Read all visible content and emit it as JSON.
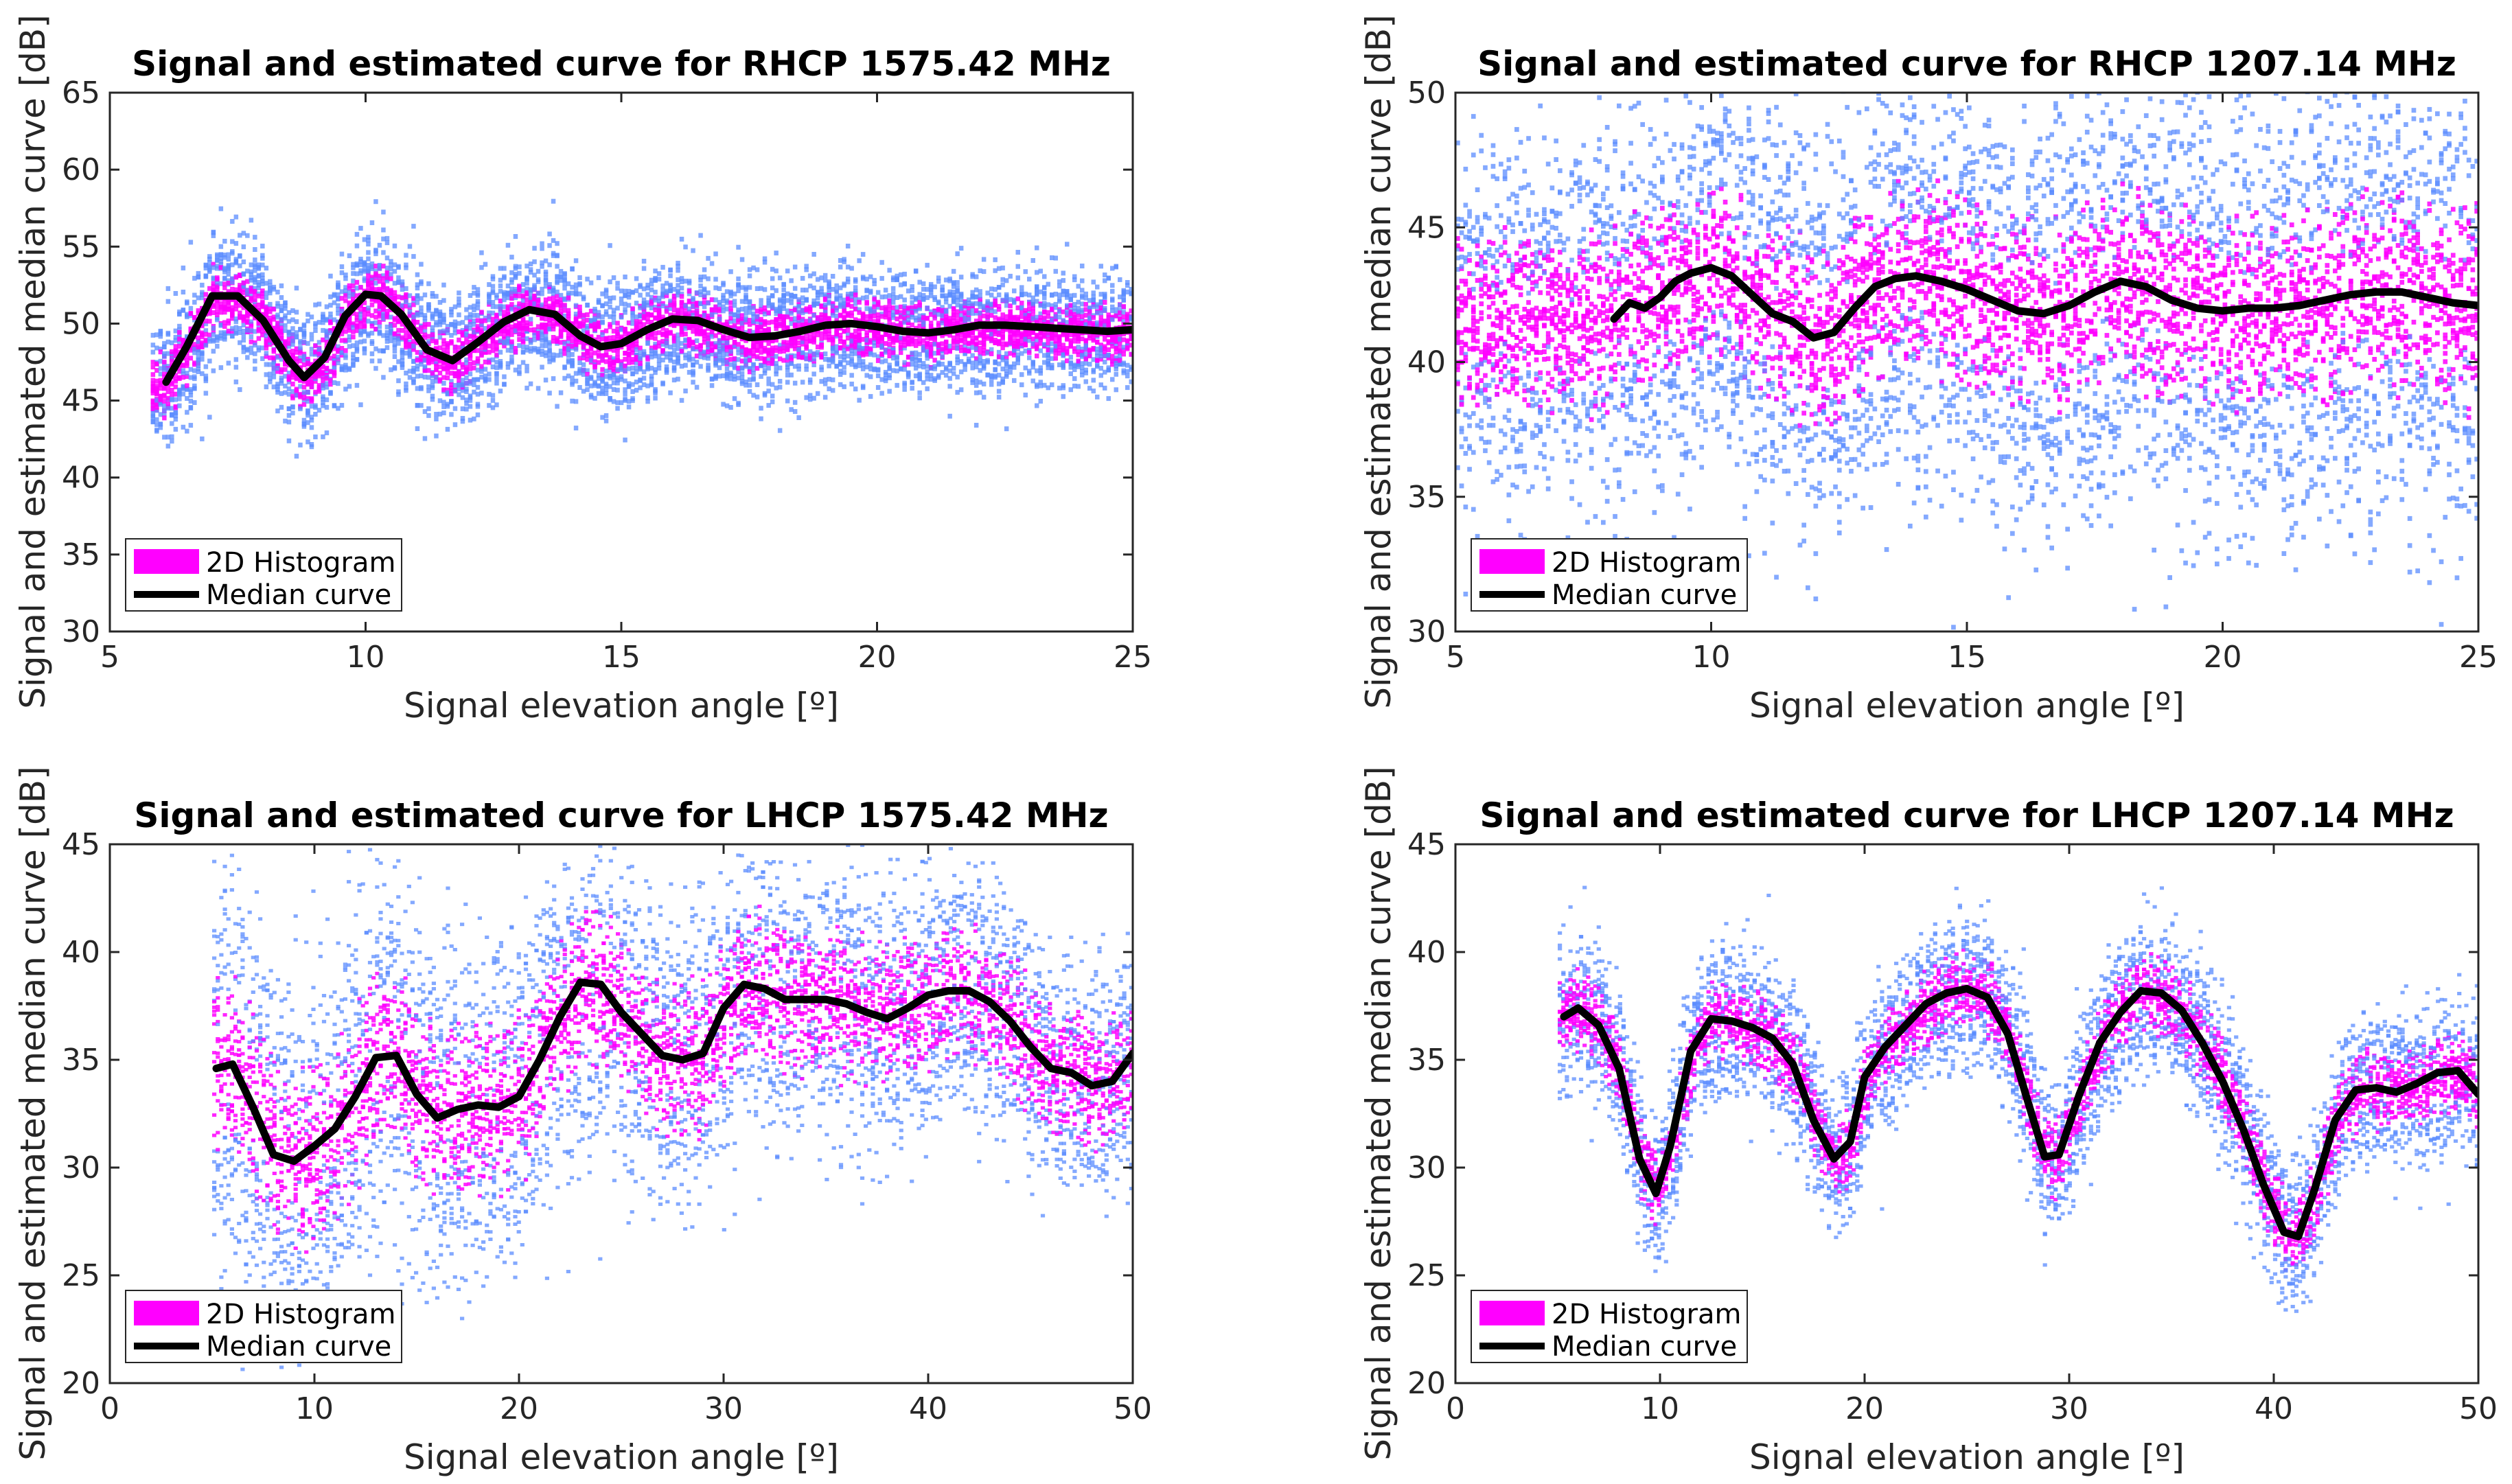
{
  "figure": {
    "colors": {
      "histogram_high": "#ff00ff",
      "histogram_low": "#5b8cff",
      "median": "#000000",
      "axis": "#262626"
    },
    "legend_position": "bottom-left"
  },
  "chart_data": [
    {
      "type": "scatter",
      "title": "Signal and estimated curve for RHCP 1575.42 MHz",
      "xlabel": "Signal elevation angle [º]",
      "ylabel": "Signal and estimated median curve [dB]",
      "xlim": [
        5,
        25
      ],
      "ylim": [
        30,
        65
      ],
      "xticks": [
        5,
        10,
        15,
        20,
        25
      ],
      "yticks": [
        30,
        35,
        40,
        45,
        50,
        55,
        60,
        65
      ],
      "legend": [
        "2D Histogram",
        "Median curve"
      ],
      "median_curve": {
        "x": [
          6.1,
          6.5,
          7.0,
          7.5,
          8.0,
          8.5,
          8.8,
          9.2,
          9.6,
          10.0,
          10.3,
          10.7,
          11.2,
          11.7,
          12.2,
          12.7,
          13.2,
          13.7,
          14.2,
          14.6,
          15.0,
          15.5,
          16.0,
          16.5,
          17.0,
          17.5,
          18.0,
          18.5,
          19.0,
          19.5,
          20.0,
          20.5,
          21.0,
          21.5,
          22.0,
          22.5,
          23.0,
          23.5,
          24.0,
          24.5,
          25.0
        ],
        "y": [
          46.2,
          48.5,
          51.8,
          51.8,
          50.2,
          47.6,
          46.5,
          47.8,
          50.5,
          51.9,
          51.8,
          50.6,
          48.3,
          47.6,
          48.8,
          50.1,
          50.9,
          50.6,
          49.2,
          48.5,
          48.7,
          49.6,
          50.3,
          50.2,
          49.6,
          49.1,
          49.2,
          49.5,
          49.9,
          50.0,
          49.8,
          49.5,
          49.4,
          49.6,
          49.9,
          49.9,
          49.8,
          49.7,
          49.6,
          49.5,
          49.6
        ]
      },
      "histogram": {
        "x_start": 5.8,
        "x_end": 25,
        "spread": [
          4.0,
          3.2
        ],
        "scatter_extra": 2.0
      }
    },
    {
      "type": "scatter",
      "title": "Signal and estimated curve for RHCP 1207.14 MHz",
      "xlabel": "Signal elevation angle [º]",
      "ylabel": "Signal and estimated median curve [dB]",
      "xlim": [
        5,
        25
      ],
      "ylim": [
        30,
        50
      ],
      "xticks": [
        5,
        10,
        15,
        20,
        25
      ],
      "yticks": [
        30,
        35,
        40,
        45,
        50
      ],
      "legend": [
        "2D Histogram",
        "Median curve"
      ],
      "median_curve": {
        "x": [
          8.1,
          8.4,
          8.7,
          9.0,
          9.3,
          9.6,
          10.0,
          10.4,
          10.8,
          11.2,
          11.6,
          12.0,
          12.4,
          12.8,
          13.2,
          13.6,
          14.0,
          14.5,
          15.0,
          15.5,
          16.0,
          16.5,
          17.0,
          17.5,
          18.0,
          18.5,
          19.0,
          19.5,
          20.0,
          20.5,
          21.0,
          21.5,
          22.0,
          22.5,
          23.0,
          23.5,
          24.0,
          24.5,
          25.0
        ],
        "y": [
          41.6,
          42.2,
          42.0,
          42.4,
          43.0,
          43.3,
          43.5,
          43.2,
          42.5,
          41.8,
          41.5,
          40.9,
          41.1,
          42.0,
          42.8,
          43.1,
          43.2,
          43.0,
          42.7,
          42.3,
          41.9,
          41.8,
          42.1,
          42.6,
          43.0,
          42.8,
          42.3,
          42.0,
          41.9,
          42.0,
          42.0,
          42.1,
          42.3,
          42.5,
          42.6,
          42.6,
          42.4,
          42.2,
          42.1
        ]
      },
      "histogram": {
        "x_start": 5.0,
        "x_end": 25,
        "spread": [
          6.0,
          8.0
        ],
        "scatter_extra": 3.0
      }
    },
    {
      "type": "scatter",
      "title": "Signal and estimated curve for LHCP 1575.42 MHz",
      "xlabel": "Signal elevation angle [º]",
      "ylabel": "Signal and estimated median curve [dB]",
      "xlim": [
        0,
        50
      ],
      "ylim": [
        20,
        45
      ],
      "xticks": [
        0,
        10,
        20,
        30,
        40,
        50
      ],
      "yticks": [
        20,
        25,
        30,
        35,
        40,
        45
      ],
      "legend": [
        "2D Histogram",
        "Median curve"
      ],
      "median_curve": {
        "x": [
          5.2,
          6.0,
          7.0,
          8.0,
          9.0,
          10.0,
          11.0,
          12.0,
          13.0,
          14.0,
          15.0,
          16.0,
          17.0,
          18.0,
          19.0,
          20.0,
          21.0,
          22.0,
          23.0,
          24.0,
          25.0,
          26.0,
          27.0,
          28.0,
          29.0,
          30.0,
          31.0,
          32.0,
          33.0,
          34.0,
          35.0,
          36.0,
          37.0,
          38.0,
          39.0,
          40.0,
          41.0,
          42.0,
          43.0,
          44.0,
          45.0,
          46.0,
          47.0,
          48.0,
          49.0,
          50.0
        ],
        "y": [
          34.6,
          34.8,
          32.8,
          30.6,
          30.3,
          31.0,
          31.8,
          33.3,
          35.1,
          35.2,
          33.4,
          32.3,
          32.7,
          32.9,
          32.8,
          33.3,
          35.0,
          37.0,
          38.6,
          38.5,
          37.2,
          36.2,
          35.2,
          35.0,
          35.3,
          37.4,
          38.5,
          38.3,
          37.8,
          37.8,
          37.8,
          37.6,
          37.2,
          36.9,
          37.4,
          38.0,
          38.2,
          38.2,
          37.7,
          36.8,
          35.6,
          34.6,
          34.4,
          33.8,
          34.0,
          35.3
        ]
      },
      "histogram": {
        "x_start": 5.0,
        "x_end": 50,
        "spread": [
          8.0,
          4.0
        ],
        "scatter_extra": 4.0
      }
    },
    {
      "type": "scatter",
      "title": "Signal and estimated curve for LHCP 1207.14 MHz",
      "xlabel": "Signal elevation angle [º]",
      "ylabel": "Signal and estimated median curve [dB]",
      "xlim": [
        0,
        50
      ],
      "ylim": [
        20,
        45
      ],
      "xticks": [
        0,
        10,
        20,
        30,
        40,
        50
      ],
      "yticks": [
        20,
        25,
        30,
        35,
        40,
        45
      ],
      "legend": [
        "2D Histogram",
        "Median curve"
      ],
      "median_curve": {
        "x": [
          5.3,
          6.0,
          7.0,
          8.0,
          9.0,
          9.8,
          10.5,
          11.5,
          12.5,
          13.5,
          14.5,
          15.5,
          16.5,
          17.5,
          18.5,
          19.3,
          20.0,
          21.0,
          22.0,
          23.0,
          24.0,
          25.0,
          26.0,
          27.0,
          28.0,
          28.8,
          29.5,
          30.5,
          31.5,
          32.5,
          33.5,
          34.5,
          35.5,
          36.5,
          37.5,
          38.5,
          39.5,
          40.5,
          41.2,
          42.0,
          43.0,
          44.0,
          45.0,
          46.0,
          47.0,
          48.0,
          49.0,
          50.0
        ],
        "y": [
          37.0,
          37.4,
          36.6,
          34.6,
          30.4,
          28.8,
          31.0,
          35.4,
          36.9,
          36.8,
          36.5,
          36.0,
          34.8,
          32.2,
          30.4,
          31.2,
          34.2,
          35.6,
          36.6,
          37.6,
          38.1,
          38.3,
          37.9,
          36.2,
          33.0,
          30.5,
          30.6,
          33.4,
          35.8,
          37.2,
          38.2,
          38.1,
          37.3,
          35.8,
          34.0,
          31.8,
          29.2,
          27.0,
          26.8,
          29.0,
          32.2,
          33.6,
          33.7,
          33.5,
          33.9,
          34.4,
          34.5,
          33.4
        ]
      },
      "histogram": {
        "x_start": 5.0,
        "x_end": 50,
        "spread": [
          3.0,
          3.0
        ],
        "scatter_extra": 2.0
      }
    }
  ]
}
